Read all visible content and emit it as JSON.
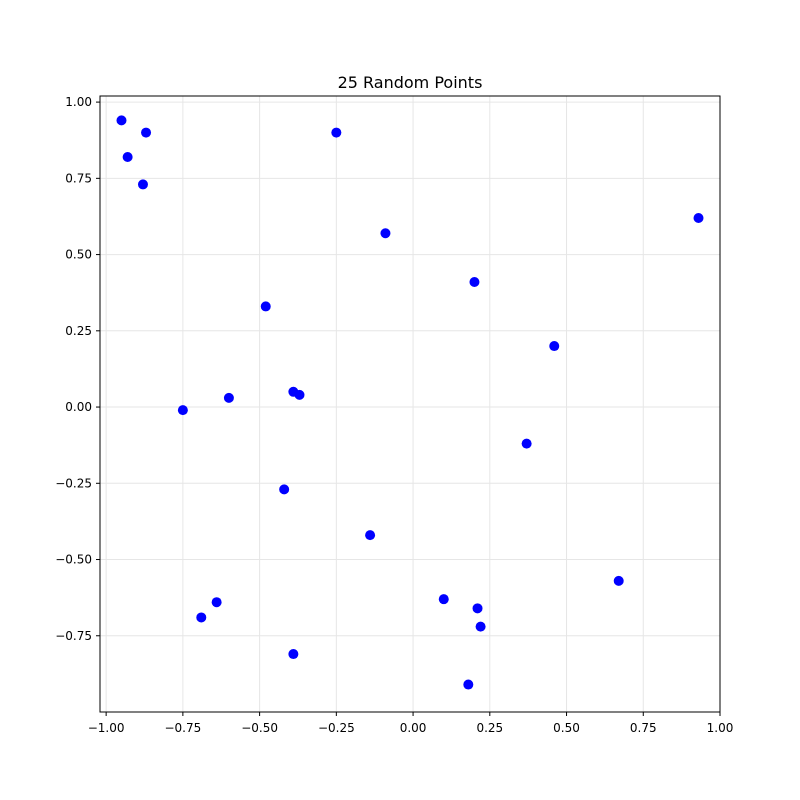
{
  "chart_data": {
    "type": "scatter",
    "title": "25 Random Points",
    "xlabel": "",
    "ylabel": "",
    "xlim": [
      -1.02,
      1.0
    ],
    "ylim": [
      -1.0,
      1.02
    ],
    "x_ticks": [
      -1.0,
      -0.75,
      -0.5,
      -0.25,
      0.0,
      0.25,
      0.5,
      0.75,
      1.0
    ],
    "x_tick_labels": [
      "−1.00",
      "−0.75",
      "−0.50",
      "−0.25",
      "0.00",
      "0.25",
      "0.50",
      "0.75",
      "1.00"
    ],
    "y_ticks": [
      1.0,
      0.75,
      0.5,
      0.25,
      0.0,
      -0.25,
      -0.5,
      -0.75
    ],
    "y_tick_labels": [
      "1.00",
      "0.75",
      "0.50",
      "0.25",
      "0.00",
      "−0.25",
      "−0.50",
      "−0.75"
    ],
    "grid": true,
    "legend": "none",
    "point_color": "#0000ff",
    "grid_color": "#e6e6e6",
    "x": [
      -0.95,
      -0.87,
      -0.93,
      -0.88,
      -0.25,
      -0.09,
      0.2,
      0.93,
      -0.48,
      0.46,
      -0.39,
      -0.37,
      -0.6,
      -0.75,
      0.37,
      -0.42,
      -0.14,
      0.67,
      0.1,
      0.21,
      0.22,
      -0.64,
      -0.69,
      -0.39,
      0.18
    ],
    "y": [
      0.94,
      0.9,
      0.82,
      0.73,
      0.9,
      0.57,
      0.41,
      0.62,
      0.33,
      0.2,
      0.05,
      0.04,
      0.03,
      -0.01,
      -0.12,
      -0.27,
      -0.42,
      -0.57,
      -0.63,
      -0.66,
      -0.72,
      -0.64,
      -0.69,
      -0.81,
      -0.91
    ]
  }
}
